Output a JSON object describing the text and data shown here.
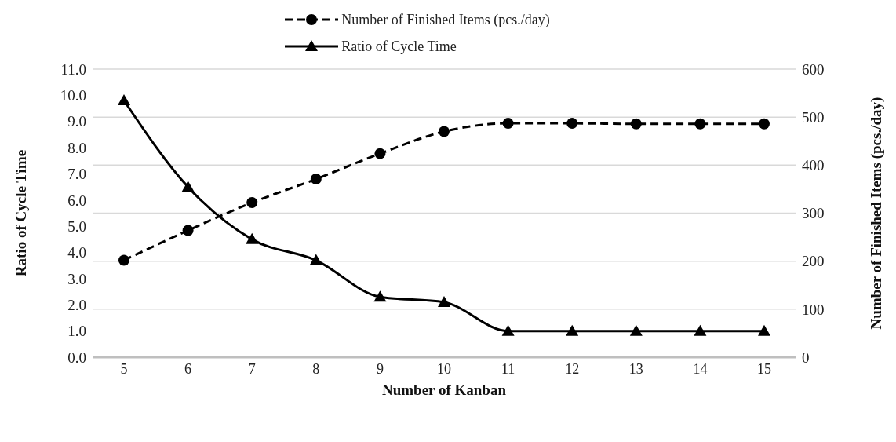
{
  "chart_data": {
    "type": "line",
    "xlabel": "Number of Kanban",
    "ylabel": "Ratio of  Cycle Time",
    "y2label": "Number of Finished Items (pcs./day)",
    "categories": [
      "5",
      "6",
      "7",
      "8",
      "9",
      "10",
      "11",
      "12",
      "13",
      "14",
      "15"
    ],
    "series": [
      {
        "name": "Number of Finished Items (pcs./day)",
        "color": "#000000",
        "axis": "y2",
        "marker": "circle",
        "line_style": "dashed",
        "values": [
          202,
          264,
          322,
          371,
          424,
          470,
          487,
          487,
          486,
          486,
          486
        ]
      },
      {
        "name": "Ratio of Cycle Time",
        "color": "#000000",
        "marker": "triangle",
        "line_style": "solid",
        "values": [
          9.8,
          6.5,
          4.5,
          3.7,
          2.3,
          2.1,
          1.0,
          1.0,
          1.0,
          1.0,
          1.0
        ]
      }
    ],
    "ylim": [
      0,
      11
    ],
    "yticks": [
      {
        "value": 0,
        "label": "0.0"
      },
      {
        "value": 1,
        "label": "1.0"
      },
      {
        "value": 2,
        "label": "2.0"
      },
      {
        "value": 3,
        "label": "3.0"
      },
      {
        "value": 4,
        "label": "4.0"
      },
      {
        "value": 5,
        "label": "5.0"
      },
      {
        "value": 6,
        "label": "6.0"
      },
      {
        "value": 7,
        "label": "7.0"
      },
      {
        "value": 8,
        "label": "8.0"
      },
      {
        "value": 9,
        "label": "9.0"
      },
      {
        "value": 10,
        "label": "10.0"
      },
      {
        "value": 11,
        "label": "11.0"
      }
    ],
    "y2lim": [
      0,
      600
    ],
    "y2ticks": [
      0,
      100,
      200,
      300,
      400,
      500,
      600
    ],
    "grid": "y",
    "legend": "top"
  }
}
